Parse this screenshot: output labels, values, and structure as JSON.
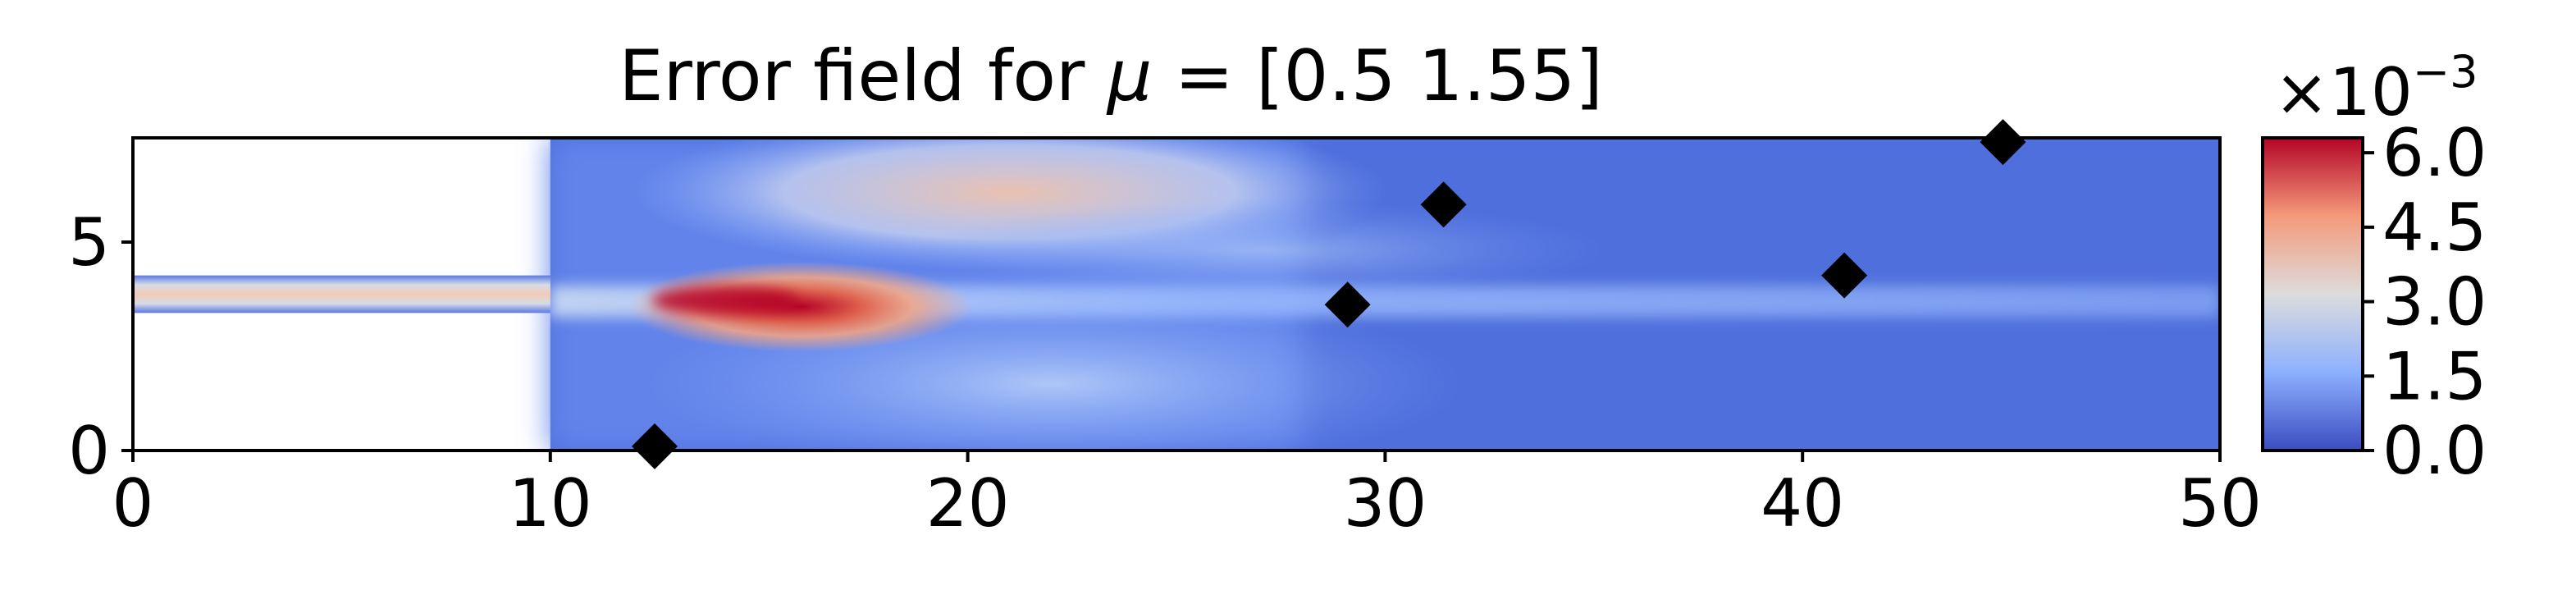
{
  "chart_data": {
    "type": "heatmap",
    "title_prefix": "Error field for ",
    "title_symbol": "μ",
    "title_suffix": " = [0.5  1.55]",
    "xlim": [
      0,
      50
    ],
    "ylim": [
      0,
      7.5
    ],
    "x_ticks": [
      {
        "value": 0,
        "label": "0"
      },
      {
        "value": 10,
        "label": "10"
      },
      {
        "value": 20,
        "label": "20"
      },
      {
        "value": 30,
        "label": "30"
      },
      {
        "value": 40,
        "label": "40"
      },
      {
        "value": 50,
        "label": "50"
      }
    ],
    "y_ticks": [
      {
        "value": 0,
        "label": "0"
      },
      {
        "value": 5,
        "label": "5"
      }
    ],
    "colormap": "coolwarm",
    "colorbar": {
      "range": [
        0.0,
        6.3
      ],
      "ticks": [
        {
          "value": 0.0,
          "label": "0.0"
        },
        {
          "value": 1.5,
          "label": "1.5"
        },
        {
          "value": 3.0,
          "label": "3.0"
        },
        {
          "value": 4.5,
          "label": "4.5"
        },
        {
          "value": 6.0,
          "label": "6.0"
        }
      ],
      "scale_base": "×10",
      "scale_exponent": "−3"
    },
    "markers": [
      {
        "x": 12.5,
        "y": 0.1
      },
      {
        "x": 29.1,
        "y": 3.5
      },
      {
        "x": 31.4,
        "y": 5.9
      },
      {
        "x": 41.0,
        "y": 4.2
      },
      {
        "x": 44.8,
        "y": 7.4
      }
    ],
    "colors": {
      "low": "#3b4cc0",
      "mid": "#dddcdc",
      "high": "#b40426",
      "marker": "#000000"
    }
  }
}
